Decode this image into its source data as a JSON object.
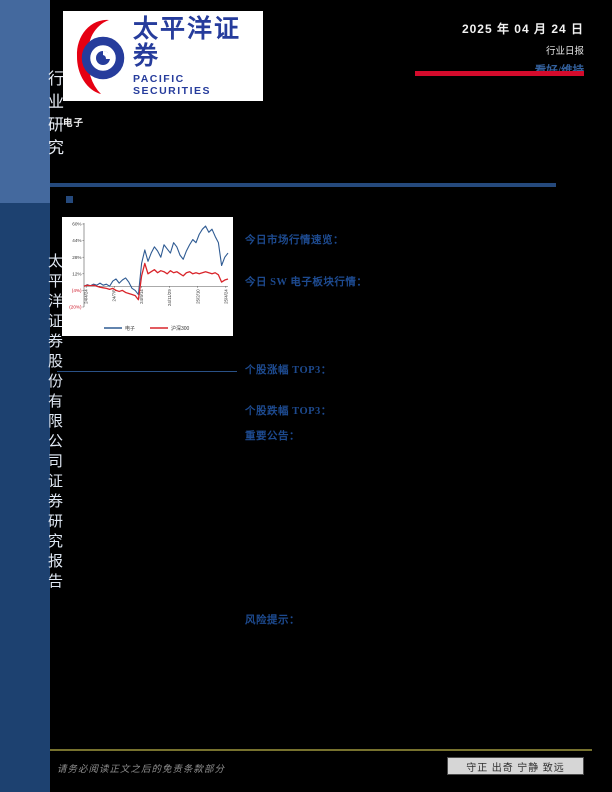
{
  "sidebar": {
    "top_label": "行业研究",
    "bottom_label": "太平洋证券股份有限公司证券研究报告",
    "top_bg": "#44699e",
    "bottom_bg": "#1d4170"
  },
  "header": {
    "logo_cn": "太平洋证券",
    "logo_en": "PACIFIC SECURITIES",
    "date": "2025 年 04 月 24 日",
    "report_type": "行业日报",
    "rating": "看好/维持",
    "accent_red": "#d40b2c",
    "rating_color": "#33609c",
    "logo_blue": "#263c9c",
    "logo_red": "#e60012"
  },
  "industry_label": "电子",
  "sections": {
    "market_overview": "今日市场行情速览：",
    "sector_today": "今日 SW 电子板块行情：",
    "top_gainers": "个股涨幅 TOP3：",
    "top_losers": "个股跌幅 TOP3：",
    "announcements": "重要公告：",
    "risk": "风险提示："
  },
  "chart_data": {
    "type": "line",
    "title": "",
    "xlabel": "",
    "ylabel": "",
    "ylim": [
      -20,
      60
    ],
    "y_ticks": [
      60,
      44,
      28,
      12,
      -4,
      -20
    ],
    "y_tick_labels": [
      "60%",
      "44%",
      "28%",
      "12%",
      "(4%)",
      "(20%)"
    ],
    "negative_tick_color": "#cc1122",
    "x_tick_labels": [
      "24/4/24",
      "24/7/6",
      "24/9/14",
      "24/11/29",
      "25/2/10",
      "25/4/24"
    ],
    "grid": false,
    "legend_position": "bottom",
    "series": [
      {
        "name": "电子",
        "color": "#2f5b93",
        "values": [
          0,
          1.5,
          0.5,
          2,
          1,
          3,
          1,
          2,
          0,
          5,
          7,
          3,
          6,
          8,
          4,
          -2,
          -4,
          -8,
          22,
          35,
          24,
          32,
          38,
          34,
          28,
          40,
          36,
          32,
          42,
          38,
          30,
          26,
          34,
          40,
          45,
          42,
          50,
          55,
          58,
          52,
          55,
          48,
          42,
          20,
          28,
          32
        ]
      },
      {
        "name": "沪深300",
        "color": "#d9252b",
        "values": [
          0,
          1,
          0.5,
          1,
          0,
          -1,
          -1.5,
          -2,
          -3,
          -2,
          -4,
          -5,
          -4,
          -6,
          -7,
          -8,
          -9,
          -13,
          10,
          22,
          12,
          14,
          16,
          13,
          15,
          14,
          12,
          15,
          13,
          14,
          12,
          10,
          13,
          14,
          12,
          13,
          12,
          13,
          14,
          13,
          12,
          13,
          11,
          4,
          6,
          7
        ]
      }
    ]
  },
  "footer": {
    "disclaimer": "请务必阅读正文之后的免责条款部分",
    "motto": "守正 出奇 宁静 致远"
  }
}
